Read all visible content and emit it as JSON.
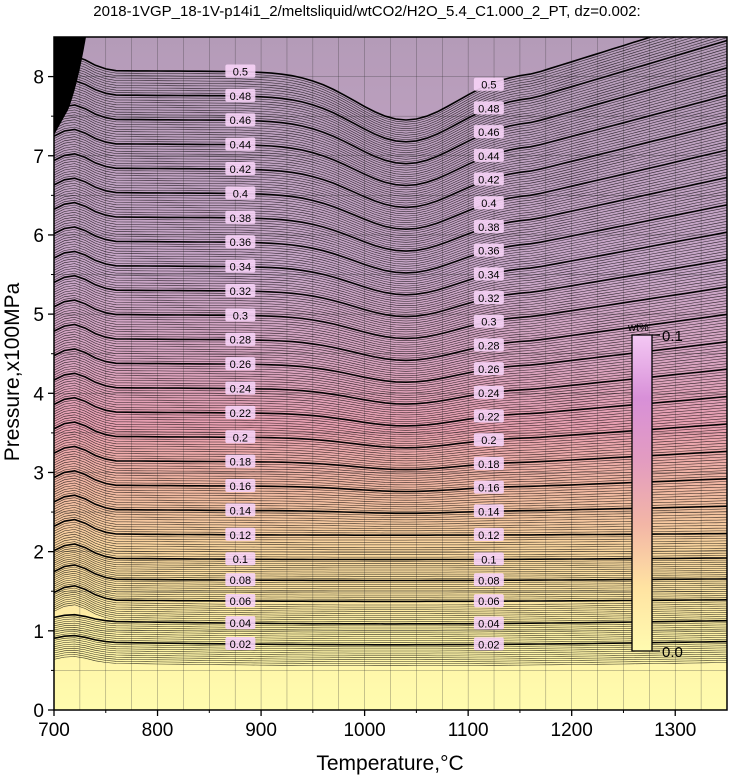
{
  "chart_data": {
    "type": "heatmap",
    "title": "2018-1VGP_18-1V-p14i1_2/meltsliquid/wtCO2/H2O_5.4_C1.000_2_PT, dz=0.002:",
    "xlabel": "Temperature,°C",
    "ylabel": "Pressure,x100MPa",
    "xlim": [
      700,
      1350
    ],
    "ylim": [
      0,
      8.5
    ],
    "xticks": [
      "700",
      "800",
      "900",
      "1000",
      "1100",
      "1200",
      "1300"
    ],
    "yticks": [
      "0",
      "1",
      "2",
      "3",
      "4",
      "5",
      "6",
      "7",
      "8"
    ],
    "grid": true,
    "contour_interval": 0.002,
    "contour_labels": [
      "0.02",
      "0.04",
      "0.06",
      "0.08",
      "0.1",
      "0.12",
      "0.14",
      "0.16",
      "0.18",
      "0.2",
      "0.22",
      "0.24",
      "0.26",
      "0.28",
      "0.3",
      "0.32",
      "0.34",
      "0.36",
      "0.38",
      "0.4",
      "0.42",
      "0.44",
      "0.46",
      "0.48",
      "0.5"
    ],
    "colorbar": {
      "label": "wt%",
      "min_label": "0.0",
      "max_label": "0.1",
      "min": 0.0,
      "max": 0.1,
      "colors": [
        "#fffbb0",
        "#ffe9a0",
        "#f7c8a0",
        "#e8a0b4",
        "#d89ad0",
        "#f0c0f0"
      ]
    },
    "colors": {
      "low": "#fffbb0",
      "mid": "#eea5ad",
      "high": "#b8a3c6",
      "contour": "#000000",
      "label_bg": "#f7d3f7"
    }
  }
}
